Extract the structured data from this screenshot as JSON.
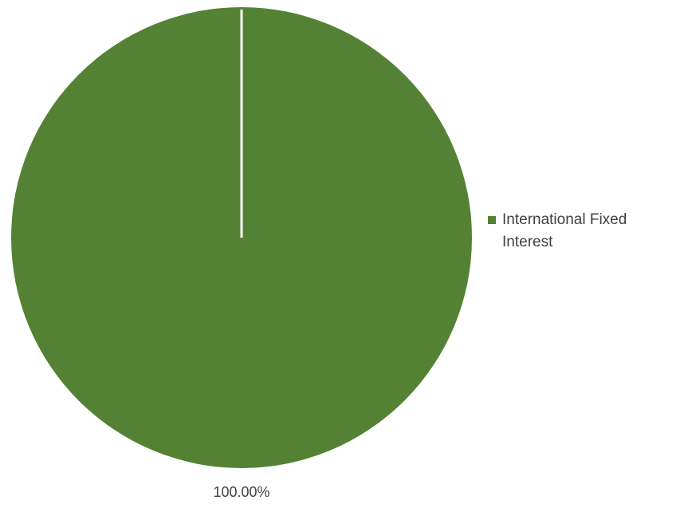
{
  "chart_data": {
    "type": "pie",
    "categories": [
      "International Fixed Interest"
    ],
    "values": [
      100.0
    ],
    "data_labels": [
      "100.00%"
    ],
    "colors": [
      "#548235"
    ],
    "legend_position": "right",
    "title": ""
  }
}
